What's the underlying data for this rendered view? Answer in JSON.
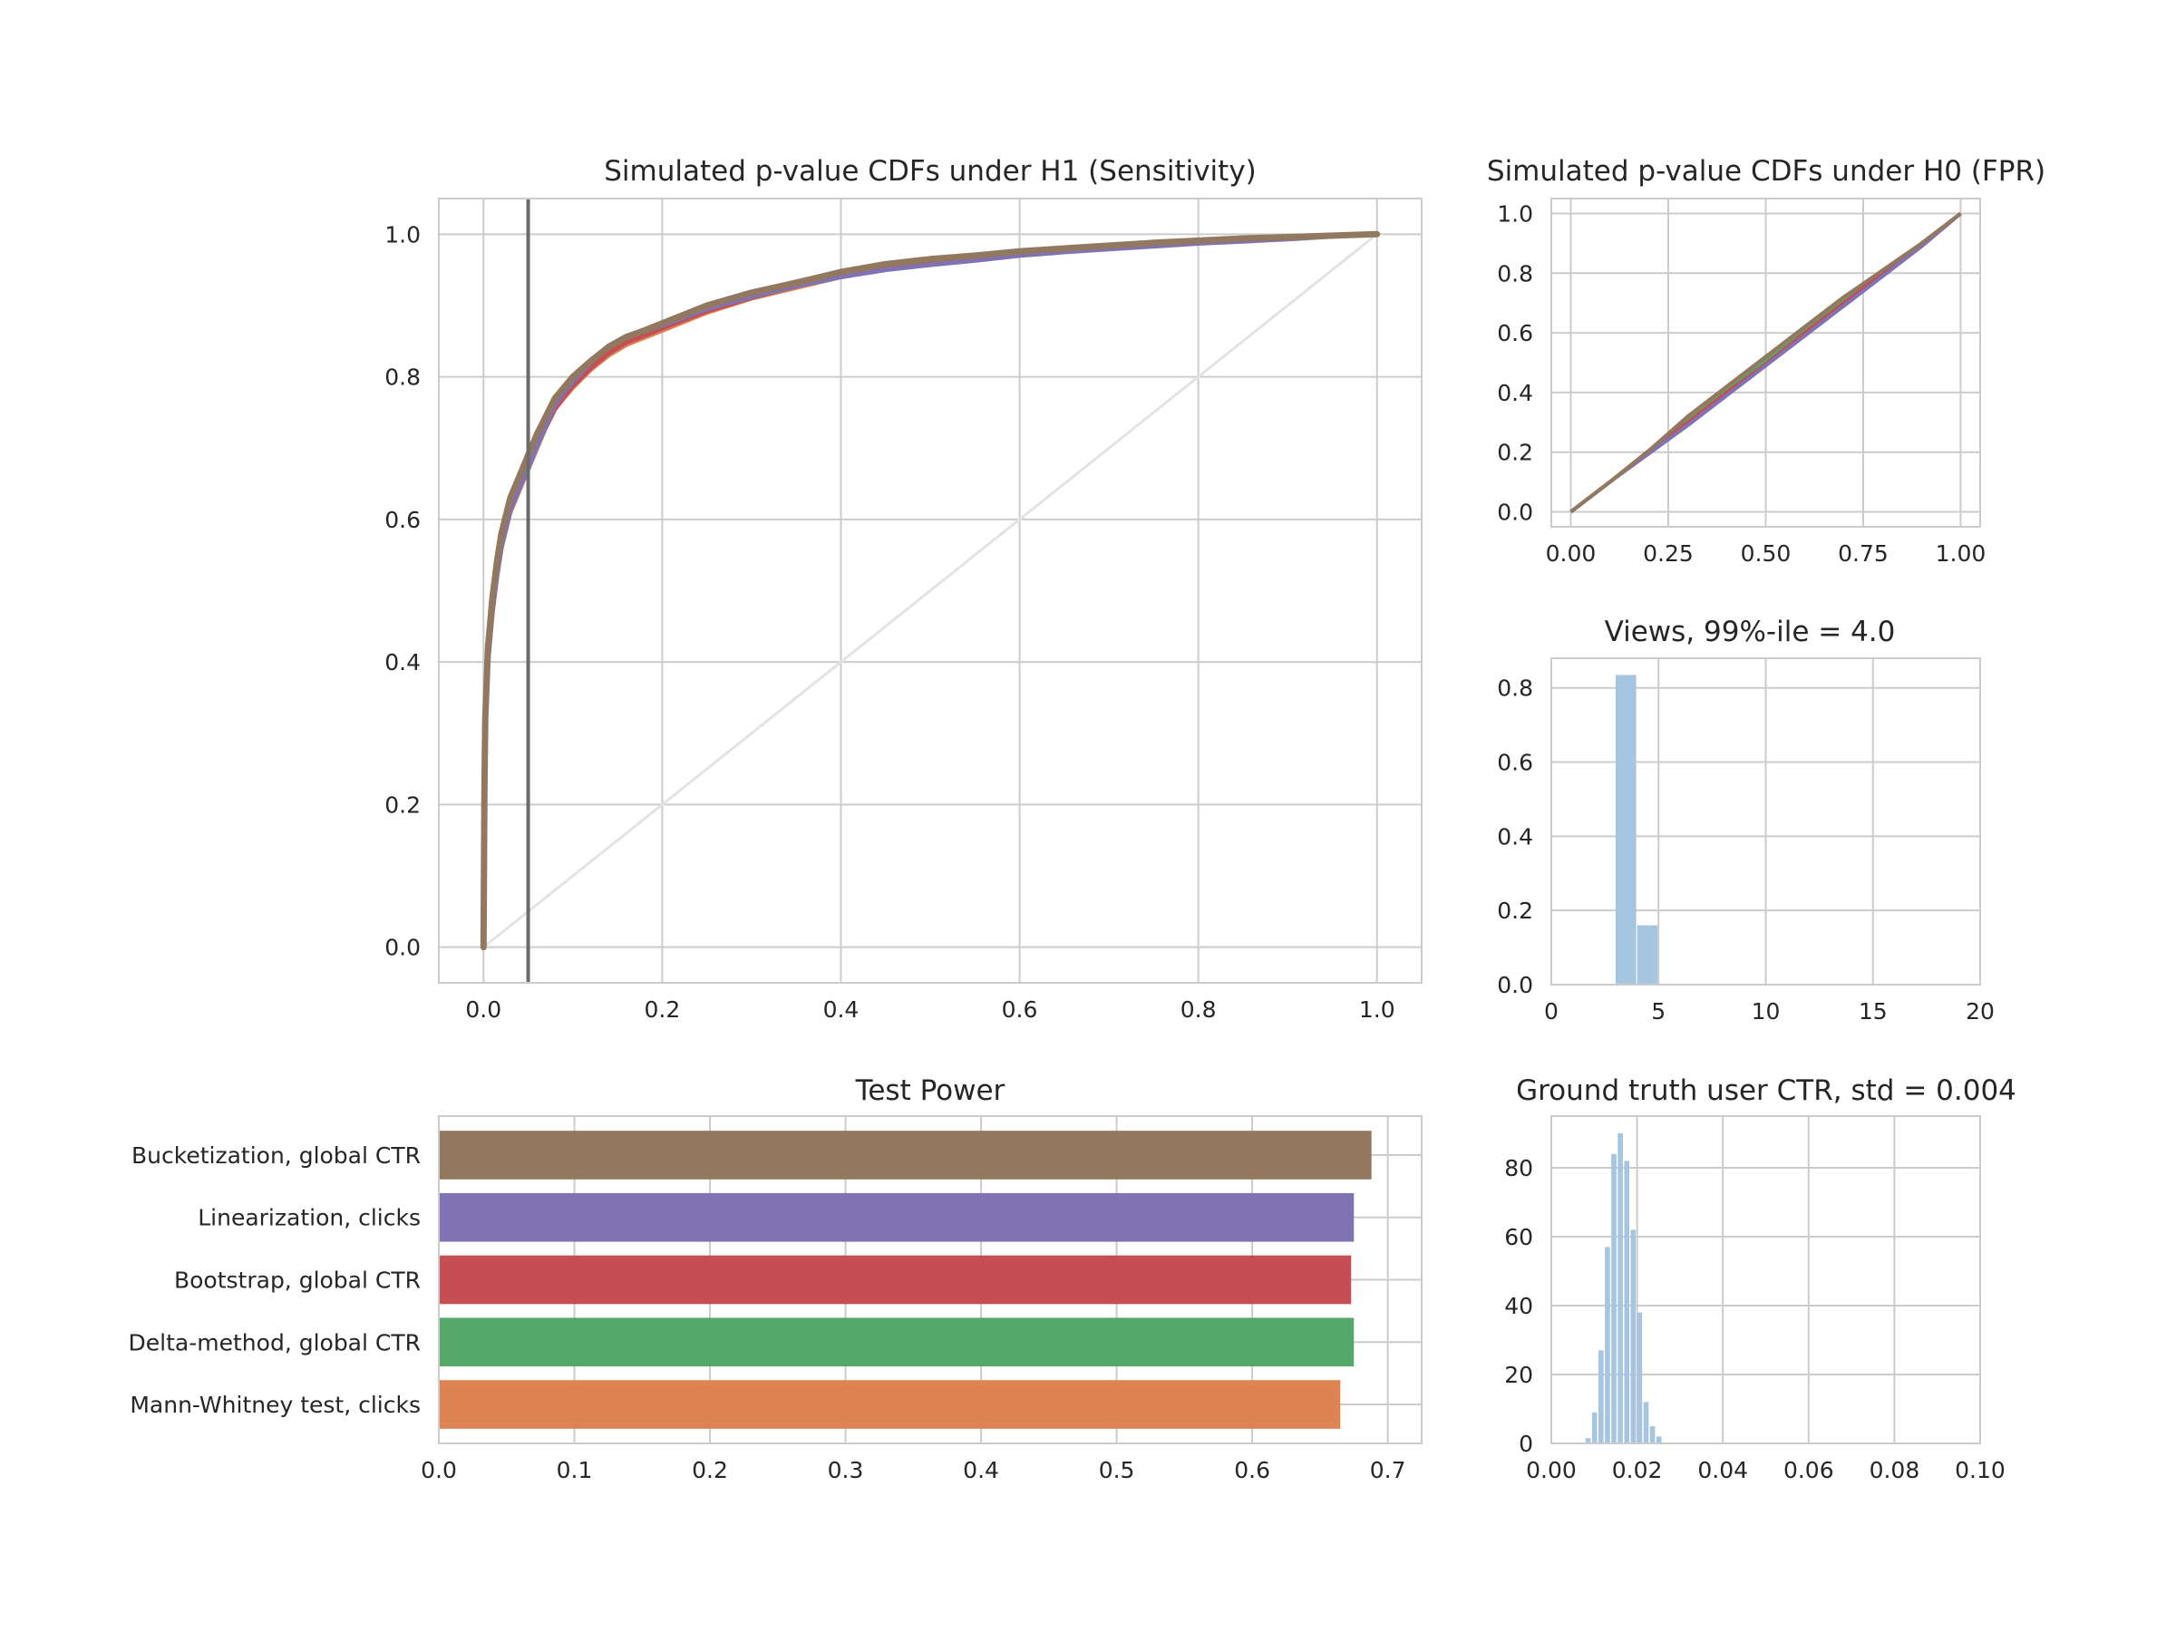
{
  "chart_data": [
    {
      "id": "h1",
      "type": "line",
      "title": "Simulated p-value CDFs under H1 (Sensitivity)",
      "xlim": [
        -0.05,
        1.05
      ],
      "ylim": [
        -0.05,
        1.05
      ],
      "xticks": [
        0.0,
        0.2,
        0.4,
        0.6,
        0.8,
        1.0
      ],
      "yticks": [
        0.0,
        0.2,
        0.4,
        0.6,
        0.8,
        1.0
      ],
      "xtick_labels": [
        "0.0",
        "0.2",
        "0.4",
        "0.6",
        "0.8",
        "1.0"
      ],
      "ytick_labels": [
        "0.0",
        "0.2",
        "0.4",
        "0.6",
        "0.8",
        "1.0"
      ],
      "grid": true,
      "vline_x": 0.05,
      "reference_diagonal": true,
      "series_x": [
        0,
        0.001,
        0.002,
        0.005,
        0.01,
        0.015,
        0.02,
        0.03,
        0.04,
        0.05,
        0.06,
        0.07,
        0.08,
        0.09,
        0.1,
        0.12,
        0.14,
        0.16,
        0.18,
        0.2,
        0.25,
        0.3,
        0.35,
        0.4,
        0.45,
        0.5,
        0.55,
        0.6,
        0.65,
        0.7,
        0.75,
        0.8,
        0.85,
        0.9,
        0.95,
        1.0
      ],
      "series": [
        {
          "color": "#dd8452",
          "values": [
            0,
            0.2,
            0.3,
            0.4,
            0.47,
            0.52,
            0.56,
            0.61,
            0.64,
            0.67,
            0.7,
            0.73,
            0.755,
            0.77,
            0.785,
            0.81,
            0.83,
            0.845,
            0.855,
            0.865,
            0.89,
            0.91,
            0.925,
            0.94,
            0.952,
            0.96,
            0.965,
            0.972,
            0.977,
            0.98,
            0.985,
            0.988,
            0.992,
            0.995,
            0.998,
            1.0
          ]
        },
        {
          "color": "#55a868",
          "values": [
            0,
            0.21,
            0.31,
            0.41,
            0.48,
            0.53,
            0.57,
            0.62,
            0.65,
            0.68,
            0.71,
            0.735,
            0.76,
            0.775,
            0.79,
            0.815,
            0.835,
            0.85,
            0.86,
            0.87,
            0.895,
            0.913,
            0.928,
            0.943,
            0.955,
            0.962,
            0.968,
            0.974,
            0.979,
            0.982,
            0.986,
            0.99,
            0.993,
            0.996,
            0.998,
            1.0
          ]
        },
        {
          "color": "#c44e52",
          "values": [
            0,
            0.2,
            0.3,
            0.4,
            0.47,
            0.525,
            0.565,
            0.615,
            0.645,
            0.675,
            0.705,
            0.73,
            0.755,
            0.772,
            0.787,
            0.812,
            0.833,
            0.848,
            0.858,
            0.868,
            0.892,
            0.911,
            0.927,
            0.941,
            0.953,
            0.961,
            0.967,
            0.973,
            0.978,
            0.981,
            0.985,
            0.989,
            0.992,
            0.995,
            0.998,
            1.0
          ]
        },
        {
          "color": "#8172b3",
          "values": [
            0,
            0.2,
            0.3,
            0.4,
            0.47,
            0.52,
            0.56,
            0.612,
            0.643,
            0.672,
            0.702,
            0.732,
            0.76,
            0.778,
            0.793,
            0.82,
            0.843,
            0.856,
            0.864,
            0.872,
            0.895,
            0.912,
            0.927,
            0.94,
            0.95,
            0.957,
            0.963,
            0.97,
            0.975,
            0.979,
            0.983,
            0.987,
            0.99,
            0.993,
            0.997,
            1.0
          ]
        },
        {
          "color": "#937860",
          "values": [
            0,
            0.22,
            0.32,
            0.42,
            0.49,
            0.54,
            0.58,
            0.63,
            0.66,
            0.69,
            0.72,
            0.745,
            0.77,
            0.785,
            0.8,
            0.822,
            0.842,
            0.856,
            0.865,
            0.875,
            0.9,
            0.918,
            0.932,
            0.947,
            0.958,
            0.965,
            0.97,
            0.976,
            0.98,
            0.984,
            0.988,
            0.991,
            0.994,
            0.996,
            0.998,
            1.0
          ]
        }
      ]
    },
    {
      "id": "h0",
      "type": "line",
      "title": "Simulated p-value CDFs under H0 (FPR)",
      "xlim": [
        -0.05,
        1.05
      ],
      "ylim": [
        -0.05,
        1.05
      ],
      "xticks": [
        0.0,
        0.25,
        0.5,
        0.75,
        1.0
      ],
      "yticks": [
        0.0,
        0.2,
        0.4,
        0.6,
        0.8,
        1.0
      ],
      "xtick_labels": [
        "0.00",
        "0.25",
        "0.50",
        "0.75",
        "1.00"
      ],
      "ytick_labels": [
        "0.0",
        "0.2",
        "0.4",
        "0.6",
        "0.8",
        "1.0"
      ],
      "grid": true,
      "series_x": [
        0,
        0.1,
        0.2,
        0.3,
        0.4,
        0.5,
        0.6,
        0.7,
        0.8,
        0.9,
        1.0
      ],
      "series": [
        {
          "color": "#dd8452",
          "values": [
            0,
            0.1,
            0.2,
            0.3,
            0.4,
            0.5,
            0.6,
            0.7,
            0.8,
            0.9,
            1.0
          ]
        },
        {
          "color": "#55a868",
          "values": [
            0,
            0.1,
            0.205,
            0.31,
            0.41,
            0.51,
            0.61,
            0.71,
            0.81,
            0.9,
            1.0
          ]
        },
        {
          "color": "#c44e52",
          "values": [
            0,
            0.1,
            0.2,
            0.3,
            0.4,
            0.495,
            0.6,
            0.7,
            0.8,
            0.9,
            1.0
          ]
        },
        {
          "color": "#8172b3",
          "values": [
            0,
            0.1,
            0.195,
            0.29,
            0.39,
            0.49,
            0.59,
            0.69,
            0.79,
            0.89,
            1.0
          ]
        },
        {
          "color": "#937860",
          "values": [
            0,
            0.1,
            0.205,
            0.32,
            0.42,
            0.52,
            0.62,
            0.72,
            0.81,
            0.9,
            1.0
          ]
        }
      ]
    },
    {
      "id": "views",
      "type": "bar",
      "title": "Views, 99%-ile = 4.0",
      "xlim": [
        0,
        20
      ],
      "ylim": [
        0,
        0.88
      ],
      "xticks": [
        0,
        5,
        10,
        15,
        20
      ],
      "yticks": [
        0.0,
        0.2,
        0.4,
        0.6,
        0.8
      ],
      "xtick_labels": [
        "0",
        "5",
        "10",
        "15",
        "20"
      ],
      "ytick_labels": [
        "0.0",
        "0.2",
        "0.4",
        "0.6",
        "0.8"
      ],
      "grid": true,
      "color": "#a6c5e0",
      "bins": [
        {
          "x0": 3.0,
          "x1": 4.0,
          "value": 0.835
        },
        {
          "x0": 4.0,
          "x1": 5.0,
          "value": 0.16
        }
      ]
    },
    {
      "id": "power",
      "type": "bar",
      "orientation": "horizontal",
      "title": "Test Power",
      "xlim": [
        0,
        0.725
      ],
      "xticks": [
        0.0,
        0.1,
        0.2,
        0.3,
        0.4,
        0.5,
        0.6,
        0.7
      ],
      "xtick_labels": [
        "0.0",
        "0.1",
        "0.2",
        "0.3",
        "0.4",
        "0.5",
        "0.6",
        "0.7"
      ],
      "grid": true,
      "categories": [
        "Bucketization, global CTR",
        "Linearization, clicks",
        "Bootstrap, global CTR",
        "Delta-method, global CTR",
        "Mann-Whitney test, clicks"
      ],
      "values": [
        0.688,
        0.675,
        0.673,
        0.675,
        0.665
      ],
      "colors": [
        "#937860",
        "#8172b3",
        "#c44e52",
        "#55a868",
        "#dd8452"
      ]
    },
    {
      "id": "ctr",
      "type": "bar",
      "title": "Ground truth user CTR, std = 0.004",
      "xlim": [
        0,
        0.1
      ],
      "ylim": [
        0,
        95
      ],
      "xticks": [
        0.0,
        0.02,
        0.04,
        0.06,
        0.08,
        0.1
      ],
      "yticks": [
        0,
        20,
        40,
        60,
        80
      ],
      "xtick_labels": [
        "0.00",
        "0.02",
        "0.04",
        "0.06",
        "0.08",
        "0.10"
      ],
      "ytick_labels": [
        "0",
        "20",
        "40",
        "60",
        "80"
      ],
      "grid": true,
      "color": "#a6c5e0",
      "bin_start": 0.008,
      "bin_width": 0.0015,
      "counts": [
        1.5,
        9,
        27,
        57,
        84,
        90,
        82,
        62,
        38,
        12,
        5,
        2
      ]
    }
  ]
}
